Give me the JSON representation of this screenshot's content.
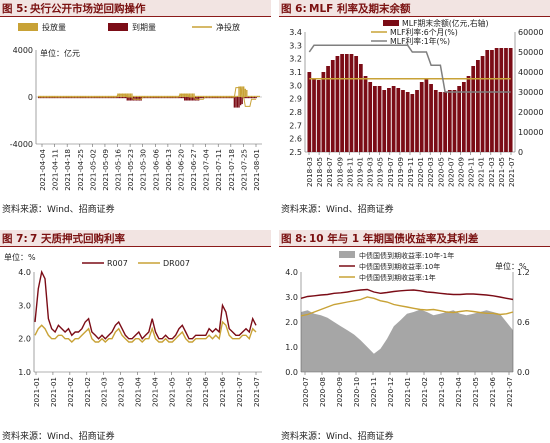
{
  "colors": {
    "gold": "#c8a236",
    "maroon": "#7b0c16",
    "grey": "#7f7f7f",
    "lightgrey": "#a6a6a6",
    "header_bg": "#f2e4e2",
    "header_text": "#7a1010"
  },
  "fig5": {
    "label": "图 5:",
    "title": "央行公开市场逆回购操作",
    "source": "资料来源：Wind、招商证券",
    "legend": [
      "投放量",
      "到期量",
      "净投放"
    ],
    "unit": "单位：亿元",
    "chart_data": {
      "type": "bar",
      "ylim": [
        -4000,
        4000
      ],
      "yticks": [
        "4000",
        "0",
        "-4000"
      ],
      "xticks": [
        "2021-04-04",
        "2021-04-11",
        "2021-04-18",
        "2021-04-25",
        "2021-05-02",
        "2021-05-09",
        "2021-05-16",
        "2021-05-23",
        "2021-05-30",
        "2021-06-06",
        "2021-06-13",
        "2021-06-20",
        "2021-06-27",
        "2021-07-04",
        "2021-07-11",
        "2021-07-18",
        "2021-07-25",
        "2021-08-01"
      ],
      "series": [
        {
          "name": "投放量",
          "values": [
            100,
            100,
            100,
            100,
            100,
            100,
            100,
            100,
            100,
            100,
            100,
            100,
            100,
            100,
            100,
            100,
            100,
            100,
            100,
            100,
            100,
            100,
            100,
            100,
            100,
            100,
            100,
            100,
            100,
            100,
            100,
            100,
            100,
            100,
            100,
            100,
            100,
            100,
            100,
            100,
            100,
            100,
            100,
            100,
            100,
            100,
            100,
            100,
            100,
            100,
            100,
            300,
            300,
            300,
            300,
            300,
            300,
            300,
            300,
            300,
            300,
            100,
            100,
            100,
            100,
            100,
            100,
            100,
            100,
            100,
            100,
            100,
            100,
            100,
            100,
            100,
            100,
            100,
            100,
            100,
            100,
            100,
            100,
            100,
            100,
            100,
            100,
            100,
            100,
            100,
            100,
            300,
            300,
            300,
            300,
            300,
            300,
            300,
            300,
            300,
            300,
            100,
            100,
            100,
            100,
            100,
            100,
            100,
            100,
            100,
            100,
            100,
            100,
            100,
            100,
            100,
            100,
            100,
            100,
            100,
            100,
            100,
            100,
            100,
            100,
            100,
            100,
            100,
            100,
            900,
            900,
            900,
            900,
            700,
            600,
            100,
            100,
            100,
            100,
            100,
            100,
            100,
            100
          ]
        },
        {
          "name": "到期量",
          "values": [
            -100,
            -100,
            -100,
            -100,
            -100,
            -100,
            -100,
            -100,
            -100,
            -100,
            -100,
            -100,
            -100,
            -100,
            -100,
            -100,
            -100,
            -100,
            -100,
            -100,
            -100,
            -100,
            -100,
            -100,
            -100,
            -100,
            -100,
            -100,
            -100,
            -100,
            -100,
            -100,
            -100,
            -100,
            -100,
            -100,
            -100,
            -100,
            -100,
            -100,
            -100,
            -100,
            -100,
            -100,
            -100,
            -100,
            -100,
            -100,
            -100,
            -100,
            -100,
            -100,
            -100,
            -100,
            -100,
            -100,
            -100,
            -300,
            -300,
            -300,
            -300,
            -300,
            -300,
            -300,
            -300,
            -300,
            -300,
            -100,
            -100,
            -100,
            -100,
            -100,
            -100,
            -100,
            -100,
            -100,
            -100,
            -100,
            -100,
            -100,
            -100,
            -100,
            -100,
            -100,
            -100,
            -100,
            -100,
            -100,
            -100,
            -100,
            -100,
            -100,
            -100,
            -100,
            -300,
            -300,
            -300,
            -300,
            -300,
            -300,
            -300,
            -300,
            -300,
            -300,
            -100,
            -100,
            -100,
            -100,
            -100,
            -100,
            -100,
            -100,
            -100,
            -100,
            -100,
            -100,
            -100,
            -100,
            -100,
            -100,
            -100,
            -100,
            -100,
            -100,
            -100,
            -100,
            -900,
            -900,
            -900,
            -900,
            -700,
            -600,
            -100,
            -100,
            -100,
            -100,
            -100,
            -100,
            -100,
            -100,
            -100
          ]
        },
        {
          "name": "净投放",
          "values": [
            0,
            0,
            0,
            0,
            0,
            0,
            0,
            0,
            0,
            0,
            0,
            0,
            0,
            0,
            0,
            0,
            0,
            0,
            0,
            0,
            0,
            0,
            0,
            0,
            0,
            0,
            0,
            0,
            0,
            0,
            0,
            0,
            0,
            0,
            0,
            0,
            0,
            0,
            0,
            0,
            0,
            0,
            0,
            0,
            0,
            0,
            0,
            0,
            0,
            0,
            0,
            200,
            200,
            200,
            200,
            200,
            200,
            0,
            0,
            0,
            0,
            -200,
            -200,
            -200,
            -200,
            -200,
            -200,
            0,
            0,
            0,
            0,
            0,
            0,
            0,
            0,
            0,
            0,
            0,
            0,
            0,
            0,
            0,
            0,
            0,
            0,
            0,
            0,
            0,
            0,
            0,
            0,
            200,
            200,
            200,
            200,
            200,
            200,
            0,
            0,
            0,
            0,
            -200,
            -200,
            -200,
            -200,
            -200,
            -200,
            0,
            0,
            0,
            0,
            0,
            0,
            0,
            0,
            0,
            0,
            0,
            0,
            0,
            0,
            0,
            0,
            0,
            0,
            0,
            0,
            800,
            800,
            800,
            800,
            0,
            0,
            -800,
            -800,
            -800,
            -800,
            -200,
            -200,
            -200,
            -200
          ]
        }
      ]
    }
  },
  "fig6": {
    "label": "图 6:",
    "title": "MLF 利率及期末余额",
    "source": "资料来源：Wind、招商证券",
    "legend": [
      "MLF期末余额(亿元,右轴)",
      "MLF利率:6个月(%)",
      "MLF利率:1年(%)"
    ],
    "chart_data": {
      "type": "bar",
      "ylim": [
        2.5,
        3.4
      ],
      "y2lim": [
        0,
        60000
      ],
      "yticks": [
        "3.4",
        "3.3",
        "3.2",
        "3.1",
        "3.0",
        "2.9",
        "2.8",
        "2.7",
        "2.6",
        "2.5"
      ],
      "y2ticks": [
        "60000",
        "50000",
        "40000",
        "30000",
        "20000",
        "10000",
        "0"
      ],
      "xticks": [
        "2018-03",
        "2018-05",
        "2018-07",
        "2018-09",
        "2018-11",
        "2019-01",
        "2019-03",
        "2019-05",
        "2019-07",
        "2019-09",
        "2019-11",
        "2020-01",
        "2020-03",
        "2020-05",
        "2020-07",
        "2020-09",
        "2020-11",
        "2021-01",
        "2021-03",
        "2021-05",
        "2021-07"
      ],
      "series": [
        {
          "name": "MLF期末余额(亿元,右轴)",
          "values": [
            40000,
            37000,
            36000,
            40000,
            43000,
            46000,
            48000,
            49000,
            49000,
            49000,
            48000,
            44000,
            38000,
            35000,
            33000,
            33000,
            31000,
            32000,
            33000,
            32000,
            31000,
            30000,
            29000,
            31000,
            35000,
            37000,
            34000,
            31000,
            30000,
            30000,
            31000,
            31000,
            33000,
            35000,
            38000,
            43000,
            46000,
            48000,
            51000,
            51000,
            52000,
            52000,
            52000,
            52000
          ]
        },
        {
          "name": "MLF利率:6个月(%)",
          "values": [
            3.05,
            3.05,
            3.05,
            3.05,
            3.05,
            3.05,
            3.05,
            3.05,
            3.05,
            3.05,
            3.05,
            3.05,
            3.05,
            3.05,
            3.05,
            3.05,
            3.05,
            3.05,
            3.05,
            3.05,
            3.05,
            3.05,
            3.05,
            3.05,
            3.05,
            3.05,
            3.05,
            3.05,
            3.05,
            3.05,
            3.05,
            3.05,
            3.05,
            3.05,
            3.05,
            3.05,
            3.05,
            3.05,
            3.05,
            3.05,
            3.05,
            3.05,
            3.05,
            3.05
          ]
        },
        {
          "name": "MLF利率:1年(%)",
          "values": [
            3.25,
            3.3,
            3.3,
            3.3,
            3.3,
            3.3,
            3.3,
            3.3,
            3.3,
            3.3,
            3.3,
            3.3,
            3.3,
            3.3,
            3.3,
            3.3,
            3.3,
            3.3,
            3.3,
            3.3,
            3.3,
            3.3,
            3.25,
            3.25,
            3.25,
            3.25,
            3.15,
            3.15,
            3.15,
            2.95,
            2.95,
            2.95,
            2.95,
            2.95,
            2.95,
            2.95,
            2.95,
            2.95,
            2.95,
            2.95,
            2.95,
            2.95,
            2.95,
            2.95
          ]
        }
      ]
    }
  },
  "fig7": {
    "label": "图 7:",
    "title": "7 天质押式回购利率",
    "source": "资料来源：Wind、招商证券",
    "unit": "单位：%",
    "legend": [
      "R007",
      "DR007"
    ],
    "chart_data": {
      "type": "line",
      "ylim": [
        1.0,
        4.0
      ],
      "yticks": [
        "4.0",
        "3.0",
        "2.0",
        "1.0"
      ],
      "xticks": [
        "2021-01",
        "2021-01",
        "2021-02",
        "2021-02",
        "2021-03",
        "2021-03",
        "2021-04",
        "2021-04",
        "2021-05",
        "2021-05",
        "2021-06",
        "2021-06",
        "2021-07",
        "2021-07"
      ],
      "series": [
        {
          "name": "R007",
          "values": [
            2.5,
            3.5,
            4.0,
            3.8,
            2.6,
            2.3,
            2.2,
            2.4,
            2.3,
            2.2,
            2.3,
            2.1,
            2.2,
            2.2,
            2.3,
            2.5,
            2.6,
            2.2,
            2.1,
            2.0,
            2.1,
            2.0,
            2.1,
            2.2,
            2.4,
            2.5,
            2.3,
            2.1,
            2.0,
            2.0,
            2.1,
            2.2,
            2.0,
            2.1,
            2.2,
            2.6,
            2.2,
            2.0,
            2.0,
            2.1,
            2.0,
            2.0,
            2.1,
            2.3,
            2.4,
            2.2,
            2.0,
            2.0,
            2.1,
            2.1,
            2.1,
            2.1,
            2.3,
            2.2,
            2.3,
            2.2,
            3.0,
            2.8,
            2.3,
            2.2,
            2.1,
            2.1,
            2.2,
            2.3,
            2.2,
            2.6,
            2.4
          ]
        },
        {
          "name": "DR007",
          "values": [
            2.1,
            2.3,
            2.4,
            2.3,
            2.1,
            2.0,
            2.0,
            2.1,
            2.1,
            2.0,
            2.0,
            1.9,
            2.0,
            2.0,
            2.1,
            2.2,
            2.3,
            2.0,
            1.9,
            1.9,
            2.0,
            1.9,
            2.0,
            2.0,
            2.2,
            2.3,
            2.1,
            2.0,
            1.9,
            1.9,
            2.0,
            2.0,
            1.9,
            2.0,
            2.0,
            2.3,
            2.0,
            1.9,
            1.9,
            2.0,
            1.9,
            1.9,
            2.0,
            2.1,
            2.2,
            2.0,
            1.9,
            1.9,
            2.0,
            2.0,
            2.0,
            2.0,
            2.1,
            2.0,
            2.1,
            2.0,
            2.5,
            2.4,
            2.1,
            2.0,
            2.0,
            2.0,
            2.1,
            2.1,
            2.0,
            2.3,
            2.2
          ]
        }
      ]
    }
  },
  "fig8": {
    "label": "图 8:",
    "title": "10 年与 1 年期国债收益率及其利差",
    "source": "资料来源：Wind、招商证券",
    "unit": "单位：%",
    "legend": [
      "中债国债到期收益率:10年-1年",
      "中债国债到期收益率:10年",
      "中债国债到期收益率:1年"
    ],
    "chart_data": {
      "type": "area",
      "ylim": [
        0.0,
        4.0
      ],
      "y2lim": [
        0.0,
        1.2
      ],
      "yticks": [
        "4.0",
        "3.0",
        "2.0",
        "1.0",
        "0.0"
      ],
      "y2ticks": [
        "1.2",
        "0.6",
        "0.0"
      ],
      "xticks": [
        "2020-07",
        "2020-08",
        "2020-09",
        "2020-10",
        "2020-11",
        "2020-12",
        "2021-01",
        "2021-02",
        "2021-03",
        "2021-04",
        "2021-05",
        "2021-06",
        "2021-07"
      ],
      "series": [
        {
          "name": "中债国债到期收益率:10年-1年",
          "values": [
            0.72,
            0.74,
            0.7,
            0.68,
            0.65,
            0.6,
            0.55,
            0.5,
            0.45,
            0.38,
            0.3,
            0.22,
            0.28,
            0.4,
            0.55,
            0.62,
            0.7,
            0.72,
            0.75,
            0.72,
            0.68,
            0.7,
            0.72,
            0.74,
            0.7,
            0.68,
            0.7,
            0.72,
            0.74,
            0.72,
            0.7,
            0.6,
            0.5
          ]
        },
        {
          "name": "中债国债到期收益率:10年",
          "values": [
            2.95,
            3.02,
            3.05,
            3.08,
            3.1,
            3.15,
            3.17,
            3.2,
            3.25,
            3.28,
            3.3,
            3.2,
            3.15,
            3.18,
            3.22,
            3.25,
            3.27,
            3.28,
            3.25,
            3.2,
            3.18,
            3.15,
            3.12,
            3.1,
            3.1,
            3.12,
            3.12,
            3.1,
            3.08,
            3.05,
            3.0,
            2.95,
            2.9
          ]
        },
        {
          "name": "中债国债到期收益率:1年",
          "values": [
            2.25,
            2.3,
            2.4,
            2.5,
            2.6,
            2.7,
            2.75,
            2.8,
            2.85,
            2.9,
            3.0,
            2.95,
            2.85,
            2.8,
            2.7,
            2.65,
            2.6,
            2.55,
            2.5,
            2.48,
            2.5,
            2.45,
            2.4,
            2.38,
            2.42,
            2.45,
            2.42,
            2.38,
            2.35,
            2.35,
            2.3,
            2.33,
            2.4
          ]
        }
      ]
    }
  }
}
